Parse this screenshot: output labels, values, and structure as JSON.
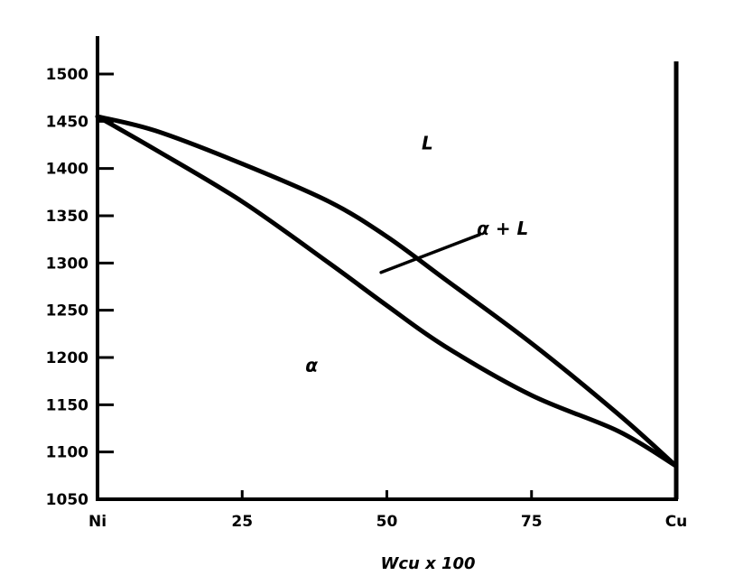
{
  "chart_data": {
    "type": "line",
    "title": "",
    "xlabel": "Wcu x 100",
    "ylabel": "",
    "xlim": [
      0,
      100
    ],
    "ylim": [
      1050,
      1500
    ],
    "grid": false,
    "yticks": [
      1050,
      1100,
      1150,
      1200,
      1250,
      1300,
      1350,
      1400,
      1450,
      1500
    ],
    "ytick_labels": [
      "1050",
      "1100",
      "1150",
      "1200",
      "1250",
      "1300",
      "1350",
      "1400",
      "1450",
      "1500"
    ],
    "xticks": [
      {
        "x": 0,
        "label": "Ni"
      },
      {
        "x": 25,
        "label": "25"
      },
      {
        "x": 50,
        "label": "50"
      },
      {
        "x": 75,
        "label": "75"
      },
      {
        "x": 100,
        "label": "Cu"
      }
    ],
    "series": [
      {
        "x": [
          0,
          10,
          25,
          40,
          50,
          60,
          75,
          90,
          100
        ],
        "y": [
          1455,
          1440,
          1405,
          1365,
          1328,
          1283,
          1215,
          1140,
          1085
        ]
      },
      {
        "x": [
          0,
          10,
          25,
          40,
          50,
          60,
          75,
          90,
          100
        ],
        "y": [
          1455,
          1420,
          1365,
          1300,
          1255,
          1212,
          1160,
          1122,
          1085
        ]
      }
    ],
    "annotations": [
      {
        "text": "L",
        "x": 57,
        "y": 1420
      },
      {
        "text": "α + L",
        "x": 70,
        "y": 1330
      },
      {
        "text": "α",
        "x": 37,
        "y": 1185
      }
    ],
    "pointer_line": {
      "from": [
        49,
        1290
      ],
      "to": [
        66,
        1330
      ]
    },
    "colors": {
      "line": "#000000",
      "background": "#ffffff"
    }
  }
}
